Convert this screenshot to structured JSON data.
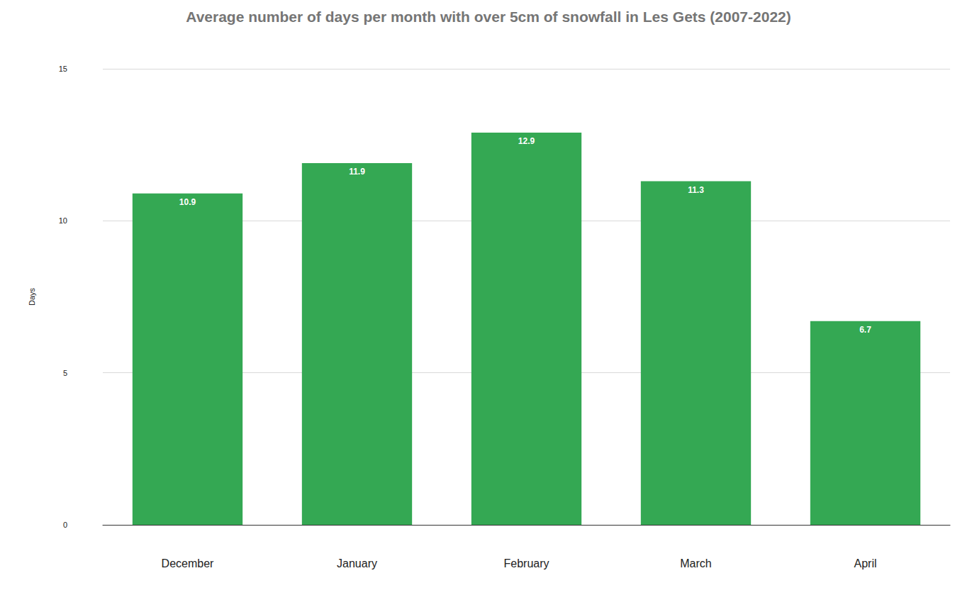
{
  "chart_data": {
    "type": "bar",
    "title": "Average number of days per month with over 5cm of snowfall in Les Gets (2007-2022)",
    "y_label": "Days",
    "categories": [
      "December",
      "January",
      "February",
      "March",
      "April"
    ],
    "values": [
      10.9,
      11.9,
      12.9,
      11.3,
      6.7
    ],
    "color": "#34a853",
    "ylim": [
      0,
      15
    ],
    "yticks": [
      0,
      5,
      10,
      15
    ],
    "grid": true,
    "data_labels": true
  }
}
